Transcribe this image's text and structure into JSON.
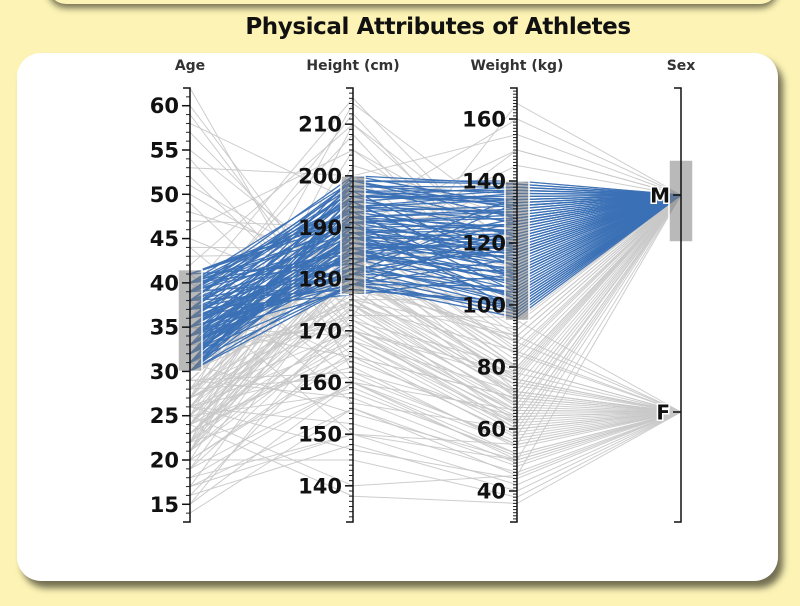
{
  "chart_data": {
    "type": "parallel-coordinates",
    "title": "Physical Attributes of Athletes",
    "axes": [
      {
        "name": "Age",
        "domain": [
          13,
          62
        ],
        "ticks": [
          15,
          20,
          25,
          30,
          35,
          40,
          45,
          50,
          55,
          60
        ],
        "brush": [
          30,
          41.5
        ]
      },
      {
        "name": "Height (cm)",
        "domain": [
          133,
          217
        ],
        "ticks": [
          140,
          150,
          160,
          170,
          180,
          190,
          200,
          210
        ],
        "brush": [
          177,
          200
        ]
      },
      {
        "name": "Weight (kg)",
        "domain": [
          30,
          170
        ],
        "ticks": [
          40,
          60,
          80,
          100,
          120,
          140,
          160
        ],
        "brush": [
          95,
          140
        ]
      },
      {
        "name": "Sex",
        "categories": [
          "F",
          "M"
        ],
        "brush": [
          "M"
        ]
      }
    ],
    "colors": {
      "selected": "#3a70b5",
      "background": "#c8c8c8",
      "brush": "#808080"
    },
    "records": [
      [
        22,
        172,
        68,
        "F"
      ],
      [
        24,
        165,
        58,
        "F"
      ],
      [
        27,
        170,
        63,
        "F"
      ],
      [
        19,
        160,
        50,
        "F"
      ],
      [
        31,
        175,
        72,
        "F"
      ],
      [
        26,
        168,
        60,
        "F"
      ],
      [
        23,
        178,
        70,
        "F"
      ],
      [
        29,
        162,
        55,
        "F"
      ],
      [
        21,
        182,
        75,
        "F"
      ],
      [
        25,
        158,
        52,
        "F"
      ],
      [
        33,
        171,
        65,
        "F"
      ],
      [
        20,
        166,
        57,
        "F"
      ],
      [
        28,
        174,
        69,
        "F"
      ],
      [
        24,
        180,
        78,
        "F"
      ],
      [
        17,
        155,
        45,
        "F"
      ],
      [
        35,
        169,
        64,
        "F"
      ],
      [
        22,
        185,
        80,
        "F"
      ],
      [
        26,
        163,
        54,
        "F"
      ],
      [
        30,
        176,
        71,
        "F"
      ],
      [
        18,
        150,
        42,
        "F"
      ],
      [
        27,
        188,
        85,
        "F"
      ],
      [
        23,
        167,
        59,
        "F"
      ],
      [
        40,
        164,
        62,
        "F"
      ],
      [
        21,
        173,
        66,
        "F"
      ],
      [
        25,
        179,
        74,
        "F"
      ],
      [
        16,
        148,
        40,
        "F"
      ],
      [
        29,
        157,
        49,
        "F"
      ],
      [
        32,
        181,
        76,
        "F"
      ],
      [
        24,
        170,
        61,
        "F"
      ],
      [
        20,
        192,
        90,
        "F"
      ],
      [
        23,
        175,
        68,
        "M"
      ],
      [
        26,
        180,
        76,
        "M"
      ],
      [
        28,
        185,
        82,
        "M"
      ],
      [
        22,
        178,
        72,
        "M"
      ],
      [
        31,
        182,
        88,
        "M"
      ],
      [
        25,
        190,
        92,
        "M"
      ],
      [
        19,
        172,
        65,
        "M"
      ],
      [
        27,
        176,
        74,
        "M"
      ],
      [
        24,
        183,
        79,
        "M"
      ],
      [
        29,
        188,
        86,
        "M"
      ],
      [
        21,
        170,
        66,
        "M"
      ],
      [
        33,
        179,
        90,
        "M"
      ],
      [
        26,
        193,
        97,
        "M"
      ],
      [
        23,
        168,
        62,
        "M"
      ],
      [
        45,
        175,
        85,
        "M"
      ],
      [
        50,
        178,
        92,
        "M"
      ],
      [
        55,
        180,
        88,
        "M"
      ],
      [
        60,
        172,
        80,
        "M"
      ],
      [
        48,
        183,
        95,
        "M"
      ],
      [
        52,
        170,
        78,
        "M"
      ],
      [
        44,
        186,
        100,
        "M"
      ],
      [
        57,
        176,
        90,
        "M"
      ],
      [
        28,
        200,
        105,
        "M"
      ],
      [
        25,
        205,
        110,
        "M"
      ],
      [
        22,
        210,
        118,
        "M"
      ],
      [
        27,
        214,
        125,
        "M"
      ],
      [
        24,
        198,
        98,
        "M"
      ],
      [
        30,
        195,
        108,
        "M"
      ],
      [
        20,
        165,
        58,
        "M"
      ],
      [
        18,
        160,
        55,
        "M"
      ],
      [
        26,
        187,
        145,
        "M"
      ],
      [
        29,
        192,
        160,
        "M"
      ],
      [
        27,
        173,
        165,
        "M"
      ],
      [
        23,
        181,
        150,
        "M"
      ],
      [
        25,
        140,
        45,
        "M"
      ],
      [
        17,
        150,
        50,
        "M"
      ],
      [
        24,
        184,
        84,
        "M"
      ],
      [
        28,
        177,
        77,
        "M"
      ],
      [
        21,
        186,
        80,
        "M"
      ],
      [
        27,
        195,
        94,
        "M"
      ],
      [
        35,
        165,
        70,
        "M"
      ],
      [
        24,
        181,
        135,
        "M"
      ],
      [
        26,
        191,
        130,
        "M"
      ],
      [
        28,
        186,
        126,
        "M"
      ],
      [
        22,
        196,
        140,
        "M"
      ],
      [
        25,
        183,
        120,
        "M"
      ],
      [
        30,
        179,
        115,
        "M"
      ],
      [
        27,
        200,
        155,
        "M"
      ],
      [
        23,
        176,
        102,
        "M"
      ],
      [
        29,
        189,
        112,
        "M"
      ],
      [
        21,
        202,
        128,
        "M"
      ],
      [
        31,
        173,
        96,
        "M"
      ],
      [
        34,
        197,
        132,
        "M"
      ],
      [
        24,
        138,
        36,
        "F"
      ],
      [
        20,
        145,
        38,
        "F"
      ],
      [
        26,
        152,
        46,
        "F"
      ],
      [
        42,
        210,
        110,
        "M"
      ],
      [
        46,
        205,
        120,
        "M"
      ],
      [
        53,
        200,
        118,
        "M"
      ],
      [
        58,
        195,
        130,
        "M"
      ],
      [
        47,
        190,
        150,
        "M"
      ],
      [
        43,
        185,
        140,
        "M"
      ],
      [
        51,
        180,
        100,
        "M"
      ],
      [
        39,
        215,
        112,
        "M"
      ],
      [
        36,
        212,
        104,
        "M"
      ],
      [
        37,
        208,
        98,
        "M"
      ],
      [
        14,
        155,
        48,
        "F"
      ],
      [
        15,
        160,
        52,
        "F"
      ],
      [
        16,
        170,
        60,
        "M"
      ],
      [
        15,
        175,
        62,
        "M"
      ],
      [
        17,
        182,
        70,
        "M"
      ],
      [
        38,
        150,
        55,
        "F"
      ],
      [
        41,
        156,
        60,
        "F"
      ],
      [
        44,
        160,
        66,
        "F"
      ],
      [
        49,
        165,
        70,
        "F"
      ],
      [
        54,
        168,
        72,
        "F"
      ],
      [
        59,
        170,
        76,
        "F"
      ],
      [
        62,
        162,
        64,
        "F"
      ],
      [
        26,
        147,
        44,
        "F"
      ],
      [
        31,
        154,
        50,
        "F"
      ],
      [
        22,
        159,
        51,
        "F"
      ],
      [
        28,
        161,
        56,
        "F"
      ],
      [
        33,
        185,
        84,
        "F"
      ],
      [
        24,
        190,
        88,
        "F"
      ],
      [
        27,
        176,
        67,
        "F"
      ],
      [
        21,
        194,
        95,
        "F"
      ],
      [
        36,
        180,
        80,
        "F"
      ],
      [
        19,
        186,
        72,
        "F"
      ],
      [
        31,
        179,
        99,
        "M"
      ],
      [
        32,
        182,
        104,
        "M"
      ],
      [
        33,
        185,
        110,
        "M"
      ],
      [
        34,
        188,
        115,
        "M"
      ],
      [
        35,
        190,
        120,
        "M"
      ],
      [
        36,
        192,
        125,
        "M"
      ],
      [
        37,
        194,
        130,
        "M"
      ],
      [
        38,
        196,
        135,
        "M"
      ],
      [
        39,
        198,
        138,
        "M"
      ],
      [
        40,
        199,
        139,
        "M"
      ],
      [
        31,
        195,
        137,
        "M"
      ],
      [
        32,
        193,
        132,
        "M"
      ],
      [
        33,
        191,
        128,
        "M"
      ],
      [
        34,
        189,
        124,
        "M"
      ],
      [
        35,
        187,
        118,
        "M"
      ],
      [
        36,
        184,
        112,
        "M"
      ],
      [
        37,
        181,
        108,
        "M"
      ],
      [
        38,
        178,
        101,
        "M"
      ],
      [
        39,
        180,
        97,
        "M"
      ],
      [
        40,
        183,
        100,
        "M"
      ],
      [
        30,
        186,
        102,
        "M"
      ],
      [
        31,
        188,
        106,
        "M"
      ],
      [
        32,
        190,
        110,
        "M"
      ],
      [
        33,
        192,
        114,
        "M"
      ],
      [
        34,
        194,
        118,
        "M"
      ],
      [
        35,
        196,
        122,
        "M"
      ],
      [
        36,
        198,
        126,
        "M"
      ],
      [
        37,
        199,
        131,
        "M"
      ],
      [
        38,
        197,
        134,
        "M"
      ],
      [
        39,
        195,
        129,
        "M"
      ],
      [
        40,
        193,
        123,
        "M"
      ],
      [
        41,
        191,
        117,
        "M"
      ],
      [
        30,
        189,
        113,
        "M"
      ],
      [
        31,
        187,
        109,
        "M"
      ],
      [
        32,
        185,
        105,
        "M"
      ],
      [
        33,
        183,
        101,
        "M"
      ],
      [
        34,
        181,
        98,
        "M"
      ],
      [
        35,
        179,
        96,
        "M"
      ],
      [
        36,
        182,
        99,
        "M"
      ],
      [
        37,
        184,
        103,
        "M"
      ],
      [
        38,
        186,
        107,
        "M"
      ],
      [
        39,
        188,
        111,
        "M"
      ],
      [
        40,
        190,
        116,
        "M"
      ],
      [
        41,
        192,
        121,
        "M"
      ],
      [
        30,
        194,
        127,
        "M"
      ],
      [
        31,
        196,
        133,
        "M"
      ],
      [
        32,
        198,
        136,
        "M"
      ],
      [
        33,
        200,
        139,
        "M"
      ],
      [
        34,
        178,
        100,
        "M"
      ],
      [
        35,
        180,
        104,
        "M"
      ],
      [
        36,
        185,
        108,
        "M"
      ],
      [
        37,
        187,
        113,
        "M"
      ],
      [
        38,
        189,
        119,
        "M"
      ],
      [
        39,
        191,
        124,
        "M"
      ],
      [
        40,
        185,
        128,
        "M"
      ],
      [
        41,
        183,
        135,
        "M"
      ],
      [
        30,
        181,
        120,
        "M"
      ],
      [
        31,
        184,
        116,
        "M"
      ],
      [
        32,
        186,
        119,
        "M"
      ],
      [
        33,
        188,
        121,
        "M"
      ],
      [
        34,
        190,
        126,
        "M"
      ],
      [
        35,
        192,
        131,
        "M"
      ],
      [
        36,
        194,
        136,
        "M"
      ],
      [
        37,
        196,
        138,
        "M"
      ],
      [
        38,
        199,
        140,
        "M"
      ],
      [
        39,
        197,
        112,
        "M"
      ],
      [
        40,
        195,
        108,
        "M"
      ],
      [
        41,
        193,
        104,
        "M"
      ],
      [
        30,
        191,
        98,
        "M"
      ],
      [
        31,
        189,
        102,
        "M"
      ],
      [
        32,
        187,
        115,
        "M"
      ],
      [
        33,
        185,
        122,
        "M"
      ],
      [
        34,
        183,
        127,
        "M"
      ],
      [
        35,
        181,
        133,
        "M"
      ],
      [
        36,
        179,
        125,
        "M"
      ],
      [
        37,
        177,
        110,
        "M"
      ],
      [
        38,
        182,
        118,
        "M"
      ],
      [
        39,
        186,
        120,
        "M"
      ],
      [
        40,
        189,
        126,
        "M"
      ],
      [
        41,
        192,
        130,
        "M"
      ],
      [
        30,
        196,
        134,
        "M"
      ],
      [
        31,
        199,
        128,
        "M"
      ],
      [
        32,
        179,
        106,
        "M"
      ],
      [
        33,
        182,
        111,
        "M"
      ],
      [
        34,
        185,
        117,
        "M"
      ],
      [
        35,
        188,
        123,
        "M"
      ],
      [
        36,
        191,
        129,
        "M"
      ],
      [
        37,
        194,
        134,
        "M"
      ],
      [
        38,
        197,
        137,
        "M"
      ],
      [
        39,
        200,
        132,
        "M"
      ]
    ]
  }
}
